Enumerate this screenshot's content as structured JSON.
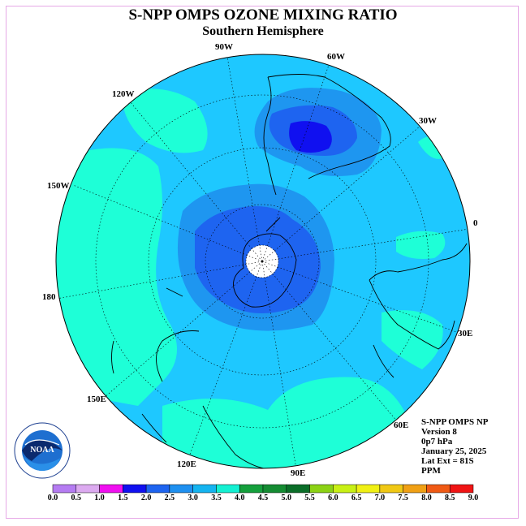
{
  "title": "S-NPP OMPS OZONE MIXING RATIO",
  "subtitle": "Southern Hemisphere",
  "longitude_labels": {
    "w90": "90W",
    "w60": "60W",
    "w30": "30W",
    "e0": "0",
    "w120": "120W",
    "w150": "150W",
    "l180": "180",
    "e30": "30E",
    "e60": "60E",
    "e90": "90E",
    "e120": "120E",
    "e150": "150E"
  },
  "info": {
    "instrument": "S-NPP OMPS NP",
    "version": "Version 8",
    "level": "0p7 hPa",
    "date": "January 25, 2025",
    "lat_ext": "Lat Ext = 81S",
    "units": "PPM"
  },
  "logo": {
    "text": "NOAA",
    "icon": "noaa-logo"
  },
  "colorbar": {
    "ticks": [
      "0.0",
      "0.5",
      "1.0",
      "1.5",
      "2.0",
      "2.5",
      "3.0",
      "3.5",
      "4.0",
      "4.5",
      "5.0",
      "5.5",
      "6.0",
      "6.5",
      "7.0",
      "7.5",
      "8.0",
      "8.5",
      "9.0"
    ],
    "colors": [
      "#b57cf2",
      "#dcaaf0",
      "#f00ff0",
      "#1010f0",
      "#1e64f0",
      "#1e90f0",
      "#14b4f0",
      "#14f0d2",
      "#14a03c",
      "#148c32",
      "#0a6e28",
      "#8cd214",
      "#c8f014",
      "#f0f014",
      "#f0c814",
      "#f0a014",
      "#f05a14",
      "#f01414",
      "#8c5a3c"
    ]
  },
  "map_colors": {
    "base": "#1ec8ff",
    "level_2_5": "#1e96f0",
    "level_2_0": "#1e64f0",
    "level_1_5": "#1010f0",
    "level_3_5": "#1effd7"
  }
}
